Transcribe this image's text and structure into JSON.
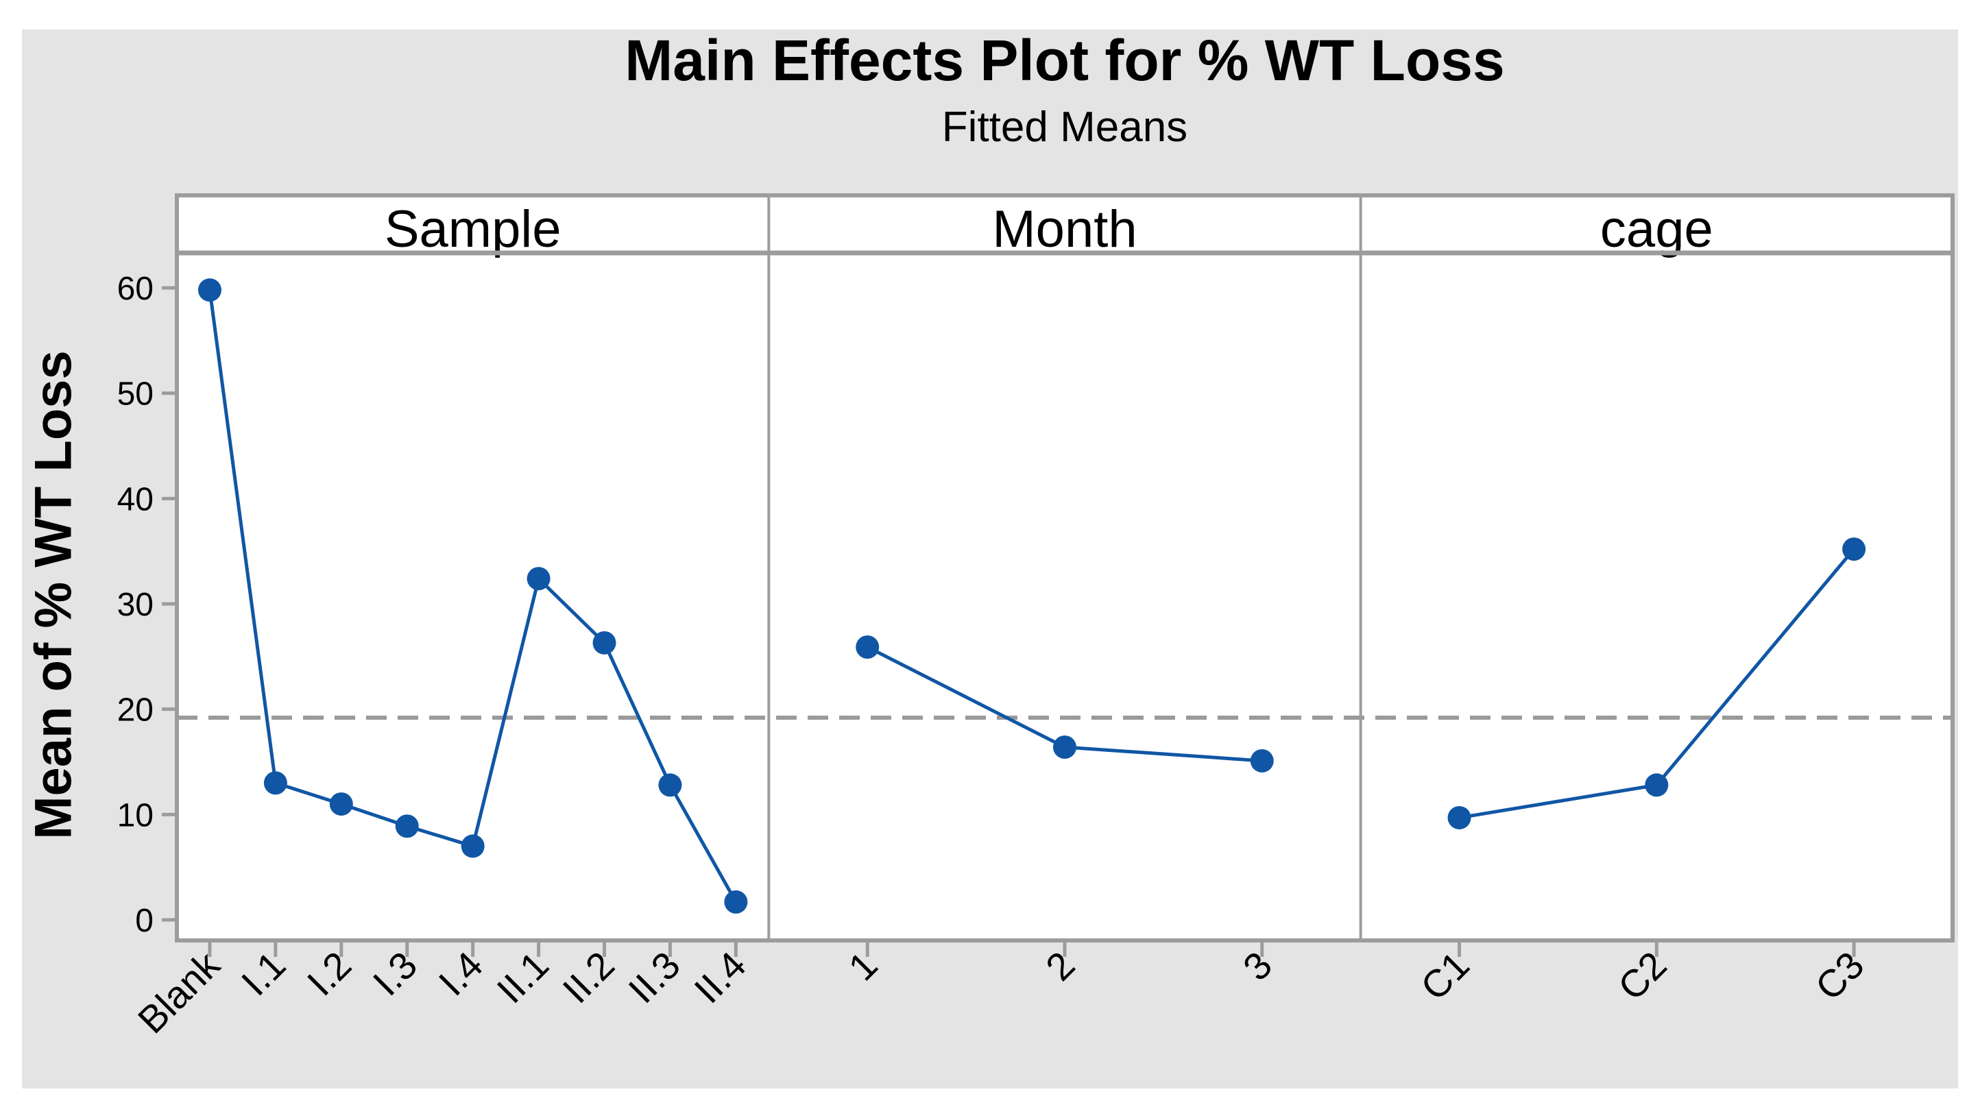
{
  "title": "Main Effects Plot for % WT Loss",
  "subtitle": "Fitted Means",
  "y_axis": {
    "label": "Mean of % WT Loss",
    "ticks": [
      0,
      10,
      20,
      30,
      40,
      50,
      60
    ],
    "min": 0,
    "max": 60
  },
  "chart_data": {
    "type": "line",
    "title": "Main Effects Plot for % WT Loss",
    "subtitle": "Fitted Means",
    "ylabel": "Mean of % WT Loss",
    "ylim": [
      0,
      60
    ],
    "grid": false,
    "legend": false,
    "reference_line_mean": 19.2,
    "panels": [
      {
        "name": "Sample",
        "categories": [
          "Blank",
          "I.1",
          "I.2",
          "I.3",
          "I.4",
          "II.1",
          "II.2",
          "II.3",
          "II.4"
        ],
        "values": [
          59.8,
          13.0,
          11.0,
          8.9,
          7.0,
          32.4,
          26.3,
          12.8,
          1.7
        ]
      },
      {
        "name": "Month",
        "categories": [
          "1",
          "2",
          "3"
        ],
        "values": [
          25.9,
          16.4,
          15.1
        ]
      },
      {
        "name": "cage",
        "categories": [
          "C1",
          "C2",
          "C3"
        ],
        "values": [
          9.7,
          12.8,
          35.2
        ]
      }
    ]
  },
  "colors": {
    "series_blue": "#1056A5",
    "reference_gray": "#9a9a9a",
    "border_gray": "#9c9c9c",
    "canvas_gray": "#e5e4e4",
    "panel_white": "#ffffff",
    "text_black": "#000000"
  }
}
